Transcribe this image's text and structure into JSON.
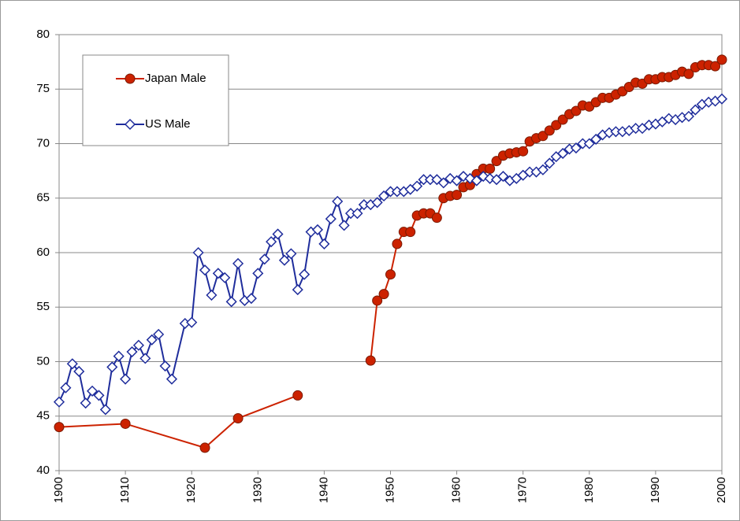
{
  "chart_data": {
    "type": "line",
    "xlim": [
      1900,
      2000
    ],
    "xticks": [
      1900,
      1910,
      1920,
      1930,
      1940,
      1950,
      1960,
      1970,
      1980,
      1990,
      2000
    ],
    "ylim": [
      40,
      80
    ],
    "yticks": [
      40,
      45,
      50,
      55,
      60,
      65,
      70,
      75,
      80
    ],
    "grid": true,
    "legend": "upper left",
    "series": [
      {
        "name": "Japan Male",
        "color": "#cc2200",
        "marker": "circle",
        "x": [
          1900,
          1910,
          1922,
          1927,
          1936,
          null,
          1947,
          1948,
          1949,
          1950,
          1951,
          1952,
          1953,
          1954,
          1955,
          1956,
          1957,
          1958,
          1959,
          1960,
          1961,
          1962,
          1963,
          1964,
          1965,
          1966,
          1967,
          1968,
          1969,
          1970,
          1971,
          1972,
          1973,
          1974,
          1975,
          1976,
          1977,
          1978,
          1979,
          1980,
          1981,
          1982,
          1983,
          1984,
          1985,
          1986,
          1987,
          1988,
          1989,
          1990,
          1991,
          1992,
          1993,
          1994,
          1995,
          1996,
          1997,
          1998,
          1999,
          2000
        ],
        "values": [
          44.0,
          44.3,
          42.1,
          44.8,
          46.9,
          null,
          50.1,
          55.6,
          56.2,
          58.0,
          60.8,
          61.9,
          61.9,
          63.4,
          63.6,
          63.6,
          63.2,
          65.0,
          65.2,
          65.3,
          66.0,
          66.2,
          67.2,
          67.7,
          67.7,
          68.4,
          68.9,
          69.1,
          69.2,
          69.3,
          70.2,
          70.5,
          70.7,
          71.2,
          71.7,
          72.2,
          72.7,
          73.0,
          73.5,
          73.4,
          73.8,
          74.2,
          74.2,
          74.5,
          74.8,
          75.2,
          75.6,
          75.5,
          75.9,
          75.9,
          76.1,
          76.1,
          76.3,
          76.6,
          76.4,
          77.0,
          77.2,
          77.2,
          77.1,
          77.7
        ]
      },
      {
        "name": "US Male",
        "color": "#1f2d9c",
        "marker": "diamond",
        "x": [
          1900,
          1901,
          1902,
          1903,
          1904,
          1905,
          1906,
          1907,
          1908,
          1909,
          1910,
          1911,
          1912,
          1913,
          1914,
          1915,
          1916,
          1917,
          1919,
          1920,
          1921,
          1922,
          1923,
          1924,
          1925,
          1926,
          1927,
          1928,
          1929,
          1930,
          1931,
          1932,
          1933,
          1934,
          1935,
          1936,
          1937,
          1938,
          1939,
          1940,
          1941,
          1942,
          1943,
          1944,
          1945,
          1946,
          1947,
          1948,
          1949,
          1950,
          1951,
          1952,
          1953,
          1954,
          1955,
          1956,
          1957,
          1958,
          1959,
          1960,
          1961,
          1962,
          1963,
          1964,
          1965,
          1966,
          1967,
          1968,
          1969,
          1970,
          1971,
          1972,
          1973,
          1974,
          1975,
          1976,
          1977,
          1978,
          1979,
          1980,
          1981,
          1982,
          1983,
          1984,
          1985,
          1986,
          1987,
          1988,
          1989,
          1990,
          1991,
          1992,
          1993,
          1994,
          1995,
          1996,
          1997,
          1998,
          1999,
          2000
        ],
        "values": [
          46.3,
          47.6,
          49.8,
          49.1,
          46.2,
          47.3,
          46.9,
          45.6,
          49.5,
          50.5,
          48.4,
          50.9,
          51.5,
          50.3,
          52.0,
          52.5,
          49.6,
          48.4,
          53.5,
          53.6,
          60.0,
          58.4,
          56.1,
          58.1,
          57.7,
          55.5,
          59.0,
          55.6,
          55.8,
          58.1,
          59.4,
          61.0,
          61.7,
          59.3,
          59.9,
          56.6,
          58.0,
          61.9,
          62.1,
          60.8,
          63.1,
          64.7,
          62.5,
          63.6,
          63.6,
          64.4,
          64.4,
          64.6,
          65.2,
          65.6,
          65.6,
          65.6,
          65.8,
          66.1,
          66.7,
          66.7,
          66.7,
          66.4,
          66.8,
          66.6,
          67.0,
          66.8,
          66.6,
          67.0,
          66.8,
          66.7,
          67.0,
          66.6,
          66.8,
          67.1,
          67.4,
          67.4,
          67.6,
          68.2,
          68.8,
          69.1,
          69.5,
          69.6,
          70.0,
          70.0,
          70.4,
          70.8,
          71.0,
          71.1,
          71.1,
          71.2,
          71.4,
          71.4,
          71.7,
          71.8,
          72.0,
          72.3,
          72.2,
          72.4,
          72.5,
          73.1,
          73.6,
          73.8,
          73.9,
          74.1
        ]
      }
    ]
  }
}
